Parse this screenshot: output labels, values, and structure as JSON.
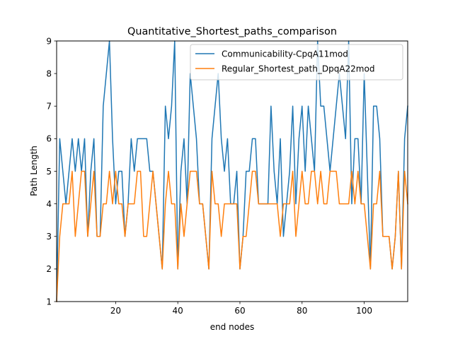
{
  "chart_data": {
    "type": "line",
    "title": "Quantitative_Shortest_paths_comparison",
    "xlabel": "end nodes",
    "ylabel": "Path Length",
    "xlim": [
      1,
      114
    ],
    "ylim": [
      1,
      9
    ],
    "xticks": [
      20,
      40,
      60,
      80,
      100
    ],
    "yticks": [
      1,
      2,
      3,
      4,
      5,
      6,
      7,
      8,
      9
    ],
    "grid": false,
    "legend_position": "upper right",
    "x": [
      1,
      2,
      3,
      4,
      5,
      6,
      7,
      8,
      9,
      10,
      11,
      12,
      13,
      14,
      15,
      16,
      17,
      18,
      19,
      20,
      21,
      22,
      23,
      24,
      25,
      26,
      27,
      28,
      29,
      30,
      31,
      32,
      33,
      34,
      35,
      36,
      37,
      38,
      39,
      40,
      41,
      42,
      43,
      44,
      45,
      46,
      47,
      48,
      49,
      50,
      51,
      52,
      53,
      54,
      55,
      56,
      57,
      58,
      59,
      60,
      61,
      62,
      63,
      64,
      65,
      66,
      67,
      68,
      69,
      70,
      71,
      72,
      73,
      74,
      75,
      76,
      77,
      78,
      79,
      80,
      81,
      82,
      83,
      84,
      85,
      86,
      87,
      88,
      89,
      90,
      91,
      92,
      93,
      94,
      95,
      96,
      97,
      98,
      99,
      100,
      101,
      102,
      103,
      104,
      105,
      106,
      107,
      108,
      109,
      110,
      111,
      112,
      113,
      114
    ],
    "series": [
      {
        "name": "Communicability-CpqA11mod",
        "color": "#1f77b4",
        "values": [
          1,
          6,
          5,
          4,
          5,
          6,
          5,
          6,
          5,
          6,
          3,
          5,
          6,
          3,
          3,
          7,
          8,
          9,
          6,
          4,
          5,
          5,
          3,
          4,
          6,
          5,
          6,
          6,
          6,
          6,
          5,
          5,
          4,
          3,
          2,
          7,
          6,
          7,
          9,
          2,
          5,
          6,
          4,
          8,
          7,
          6,
          4,
          4,
          3,
          2,
          6,
          7,
          8,
          6,
          5,
          6,
          4,
          4,
          5,
          2,
          3,
          5,
          5,
          6,
          6,
          4,
          4,
          4,
          4,
          7,
          5,
          4,
          6,
          3,
          4,
          5,
          7,
          4,
          6,
          7,
          5,
          7,
          6,
          5,
          9,
          7,
          7,
          6,
          5,
          6,
          7,
          8,
          7,
          6,
          9,
          4,
          6,
          6,
          4,
          8,
          5,
          2,
          7,
          7,
          6,
          3,
          3,
          3,
          2,
          3,
          5,
          2,
          6,
          7
        ]
      },
      {
        "name": "Regular_Shortest_path_DpqA22mod",
        "color": "#ff7f0e",
        "values": [
          1,
          3,
          4,
          4,
          4,
          5,
          3,
          4,
          5,
          5,
          3,
          4,
          5,
          3,
          3,
          4,
          4,
          5,
          4,
          5,
          4,
          4,
          3,
          4,
          4,
          4,
          5,
          5,
          3,
          3,
          4,
          5,
          4,
          3,
          2,
          4,
          5,
          4,
          4,
          2,
          4,
          3,
          4,
          5,
          5,
          5,
          4,
          4,
          3,
          2,
          5,
          4,
          4,
          3,
          4,
          4,
          4,
          4,
          4,
          2,
          3,
          3,
          4,
          5,
          5,
          4,
          4,
          4,
          4,
          4,
          4,
          4,
          3,
          4,
          4,
          4,
          5,
          3,
          4,
          5,
          4,
          4,
          5,
          5,
          4,
          5,
          4,
          4,
          5,
          5,
          5,
          4,
          4,
          4,
          4,
          5,
          4,
          5,
          4,
          4,
          3,
          2,
          4,
          4,
          5,
          3,
          3,
          3,
          2,
          3,
          5,
          2,
          5,
          4
        ]
      }
    ]
  }
}
